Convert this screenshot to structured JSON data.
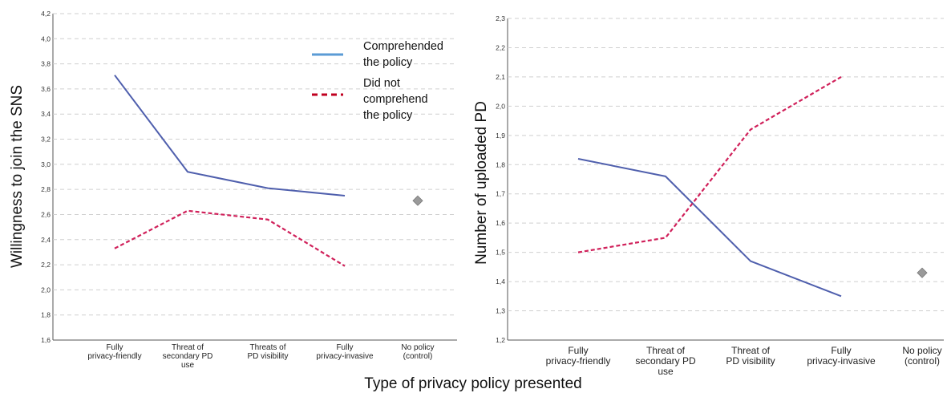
{
  "figure": {
    "xlabel": "Type of privacy policy presented"
  },
  "legend": {
    "items": [
      {
        "label_lines": [
          "Comprehended",
          "the policy"
        ],
        "color": "#5b9bd5",
        "dash": "solid"
      },
      {
        "label_lines": [
          "Did not",
          "comprehend",
          "the policy"
        ],
        "color": "#c00020",
        "dash": "dashed"
      }
    ]
  },
  "colors": {
    "comprehended": "#4f5fad",
    "not_comprehended": "#d0205a",
    "control": "#9a9a9a",
    "grid": "#cfcfcf"
  },
  "chart_data": [
    {
      "type": "line",
      "ylabel": "Willingness to join the SNS",
      "ylim": [
        1.6,
        4.2
      ],
      "yticks": [
        "1,6",
        "1,8",
        "2,0",
        "2,2",
        "2,4",
        "2,6",
        "2,8",
        "3,0",
        "3,2",
        "3,4",
        "3,6",
        "3,8",
        "4,0",
        "4,2"
      ],
      "grid": true,
      "legend_position": "top-right",
      "categories": [
        [
          "Fully",
          "privacy-friendly"
        ],
        [
          "Threat of",
          "secondary PD",
          "use"
        ],
        [
          "Threats of",
          "PD visibility"
        ],
        [
          "Fully",
          "privacy-invasive"
        ],
        [
          "No policy",
          "(control)"
        ]
      ],
      "series": [
        {
          "name": "Comprehended the policy",
          "values": [
            3.71,
            2.94,
            2.81,
            2.75,
            null
          ]
        },
        {
          "name": "Did not comprehend the policy",
          "values": [
            2.33,
            2.63,
            2.56,
            2.19,
            null
          ]
        },
        {
          "name": "",
          "marker": "diamond",
          "values": [
            null,
            null,
            null,
            null,
            2.71
          ]
        }
      ]
    },
    {
      "type": "line",
      "ylabel": "Number of uploaded PD",
      "ylim": [
        1.2,
        2.3
      ],
      "yticks": [
        "1,2",
        "1,3",
        "1,4",
        "1,5",
        "1,6",
        "1,7",
        "1,8",
        "1,9",
        "2,0",
        "2,1",
        "2,2",
        "2,3"
      ],
      "grid": true,
      "categories": [
        [
          "Fully",
          "privacy-friendly"
        ],
        [
          "Threat of",
          "secondary PD",
          "use"
        ],
        [
          "Threat of",
          "PD visibility"
        ],
        [
          "Fully",
          "privacy-invasive"
        ],
        [
          "No policy",
          "(control)"
        ]
      ],
      "series": [
        {
          "name": "Comprehended the policy",
          "values": [
            1.82,
            1.76,
            1.47,
            1.35,
            null
          ]
        },
        {
          "name": "Did not comprehend the policy",
          "values": [
            1.5,
            1.55,
            1.92,
            2.1,
            null
          ]
        },
        {
          "name": "",
          "marker": "diamond",
          "values": [
            null,
            null,
            null,
            null,
            1.43
          ]
        }
      ]
    }
  ]
}
